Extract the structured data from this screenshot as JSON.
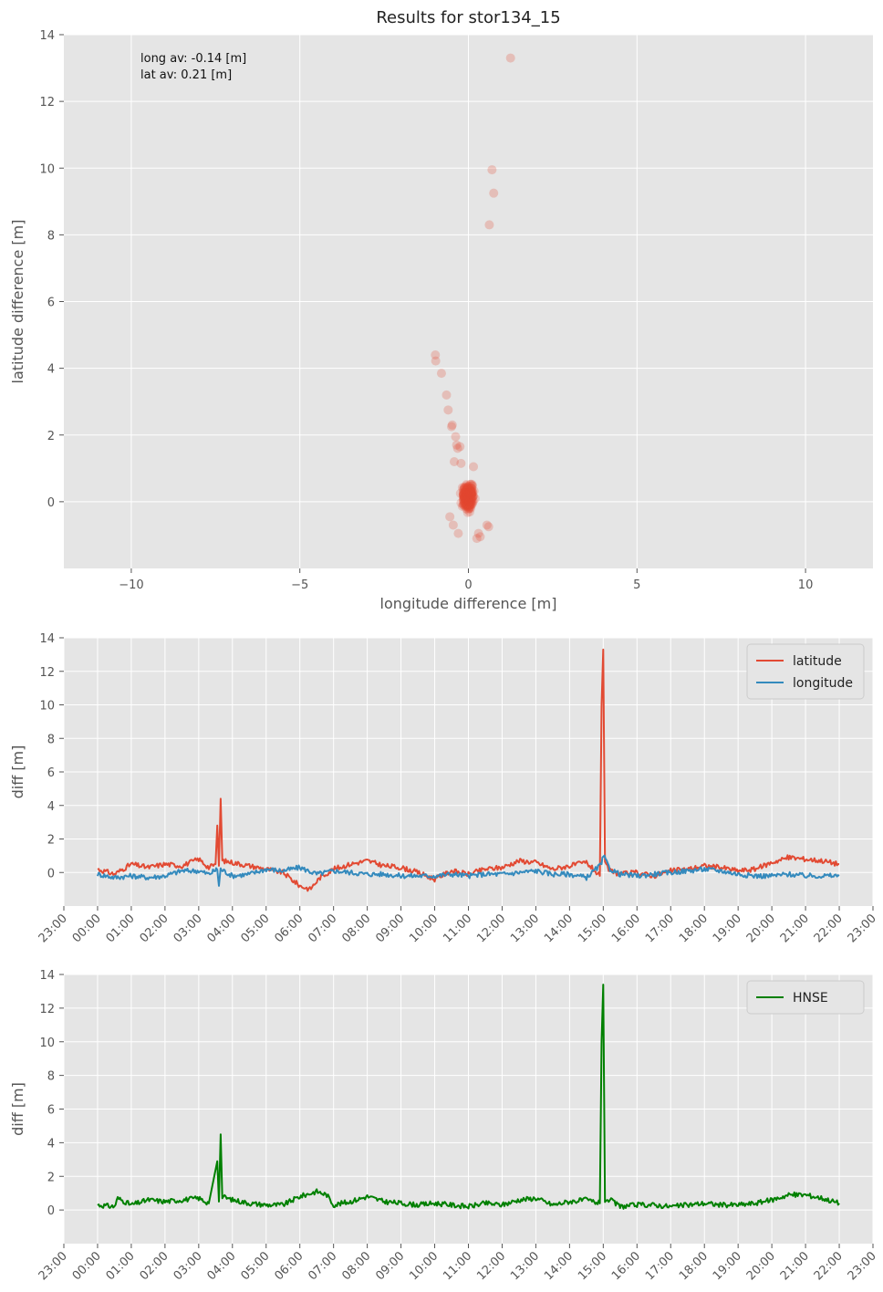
{
  "chart_data": [
    {
      "type": "scatter",
      "title": "Results for stor134_15",
      "xlabel": "longitude difference [m]",
      "ylabel": "latitude difference [m]",
      "xlim": [
        -12,
        12
      ],
      "ylim": [
        -2,
        14
      ],
      "xticks": [
        "-10",
        "-5",
        "0",
        "5",
        "10"
      ],
      "xtick_values": [
        -10,
        -5,
        0,
        5,
        10
      ],
      "yticks": [
        "0",
        "2",
        "4",
        "6",
        "8",
        "10",
        "12",
        "14"
      ],
      "ytick_values": [
        0,
        2,
        4,
        6,
        8,
        10,
        12,
        14
      ],
      "annotation": [
        "long av: -0.14 [m]",
        "lat av: 0.21 [m]"
      ],
      "marker_color": "#E24A33",
      "grid": true,
      "points_outliers": [
        [
          1.25,
          13.3
        ],
        [
          0.7,
          9.95
        ],
        [
          0.75,
          9.25
        ],
        [
          0.62,
          8.3
        ],
        [
          -0.98,
          4.4
        ],
        [
          -0.97,
          4.22
        ],
        [
          -0.8,
          3.85
        ],
        [
          -0.65,
          3.2
        ],
        [
          -0.6,
          2.75
        ],
        [
          -0.48,
          2.3
        ],
        [
          -0.5,
          2.25
        ],
        [
          -0.38,
          1.95
        ],
        [
          -0.35,
          1.7
        ],
        [
          -0.32,
          1.6
        ],
        [
          -0.25,
          1.65
        ],
        [
          -0.42,
          1.2
        ],
        [
          -0.22,
          1.15
        ],
        [
          0.15,
          1.05
        ],
        [
          0.55,
          -0.7
        ],
        [
          0.6,
          -0.75
        ],
        [
          0.3,
          -0.95
        ],
        [
          0.35,
          -1.05
        ],
        [
          0.25,
          -1.1
        ],
        [
          -0.3,
          -0.95
        ],
        [
          -0.55,
          -0.45
        ],
        [
          -0.45,
          -0.7
        ]
      ]
    },
    {
      "type": "line",
      "ylabel": "diff [m]",
      "ylim": [
        -2,
        14
      ],
      "yticks": [
        "0",
        "2",
        "4",
        "6",
        "8",
        "10",
        "12",
        "14"
      ],
      "ytick_values": [
        0,
        2,
        4,
        6,
        8,
        10,
        12,
        14
      ],
      "xticks": [
        "23:00",
        "00:00",
        "01:00",
        "02:00",
        "03:00",
        "04:00",
        "05:00",
        "06:00",
        "07:00",
        "08:00",
        "09:00",
        "10:00",
        "11:00",
        "12:00",
        "13:00",
        "14:00",
        "15:00",
        "16:00",
        "17:00",
        "18:00",
        "19:00",
        "20:00",
        "21:00",
        "22:00",
        "23:00"
      ],
      "xlim_hours": [
        -1,
        23
      ],
      "legend": "top-right",
      "grid": true,
      "series": [
        {
          "name": "latitude",
          "color": "#E24A33",
          "x": [
            0.0,
            0.5,
            1.0,
            1.5,
            2.0,
            2.5,
            3.0,
            3.3,
            3.5,
            3.55,
            3.6,
            3.65,
            3.7,
            4.0,
            4.5,
            5.0,
            5.5,
            6.0,
            6.3,
            6.6,
            7.0,
            7.5,
            8.0,
            8.5,
            9.0,
            9.5,
            10.0,
            10.5,
            11.0,
            11.5,
            12.0,
            12.5,
            13.0,
            13.5,
            14.0,
            14.5,
            14.9,
            14.95,
            15.0,
            15.05,
            15.2,
            15.5,
            16.0,
            16.5,
            17.0,
            17.5,
            18.0,
            18.5,
            19.0,
            19.5,
            20.0,
            20.5,
            21.0,
            21.5,
            22.0
          ],
          "y": [
            0.2,
            -0.1,
            0.5,
            0.3,
            0.5,
            0.4,
            0.8,
            0.3,
            0.5,
            2.8,
            0.4,
            4.4,
            0.7,
            0.6,
            0.4,
            0.2,
            0.0,
            -0.8,
            -1.0,
            -0.3,
            0.2,
            0.5,
            0.7,
            0.4,
            0.3,
            0.0,
            -0.4,
            0.1,
            -0.1,
            0.2,
            0.3,
            0.7,
            0.6,
            0.2,
            0.4,
            0.6,
            -0.2,
            10.0,
            13.3,
            0.5,
            0.1,
            -0.1,
            0.0,
            -0.2,
            0.1,
            0.2,
            0.4,
            0.3,
            0.1,
            0.2,
            0.6,
            0.9,
            0.8,
            0.7,
            0.5
          ]
        },
        {
          "name": "longitude",
          "color": "#348ABD",
          "x": [
            0.0,
            0.5,
            1.0,
            1.5,
            2.0,
            2.5,
            3.0,
            3.3,
            3.55,
            3.6,
            3.65,
            4.0,
            4.5,
            5.0,
            5.5,
            6.0,
            6.5,
            7.0,
            7.5,
            8.0,
            8.5,
            9.0,
            9.5,
            10.0,
            10.5,
            11.0,
            11.5,
            12.0,
            12.5,
            13.0,
            13.5,
            14.0,
            14.5,
            14.95,
            15.0,
            15.2,
            15.5,
            16.0,
            16.5,
            17.0,
            17.5,
            18.0,
            18.5,
            19.0,
            19.5,
            20.0,
            20.5,
            21.0,
            21.5,
            22.0
          ],
          "y": [
            -0.1,
            -0.3,
            -0.2,
            -0.3,
            -0.2,
            0.1,
            0.1,
            -0.1,
            0.2,
            -0.8,
            0.2,
            -0.2,
            -0.1,
            0.2,
            0.1,
            0.3,
            -0.1,
            0.1,
            0.0,
            -0.1,
            -0.1,
            -0.2,
            -0.2,
            -0.2,
            -0.1,
            -0.2,
            -0.1,
            -0.1,
            0.0,
            0.1,
            -0.1,
            -0.1,
            -0.3,
            0.5,
            1.0,
            0.2,
            -0.1,
            -0.2,
            -0.1,
            0.0,
            0.1,
            0.2,
            0.1,
            -0.1,
            -0.2,
            -0.2,
            -0.1,
            -0.2,
            -0.2,
            -0.2
          ]
        }
      ]
    },
    {
      "type": "line",
      "ylabel": "diff [m]",
      "ylim": [
        -2,
        14
      ],
      "yticks": [
        "0",
        "2",
        "4",
        "6",
        "8",
        "10",
        "12",
        "14"
      ],
      "ytick_values": [
        0,
        2,
        4,
        6,
        8,
        10,
        12,
        14
      ],
      "xticks": [
        "23:00",
        "00:00",
        "01:00",
        "02:00",
        "03:00",
        "04:00",
        "05:00",
        "06:00",
        "07:00",
        "08:00",
        "09:00",
        "10:00",
        "11:00",
        "12:00",
        "13:00",
        "14:00",
        "15:00",
        "16:00",
        "17:00",
        "18:00",
        "19:00",
        "20:00",
        "21:00",
        "22:00",
        "23:00"
      ],
      "xlim_hours": [
        -1,
        23
      ],
      "legend": "top-right",
      "grid": true,
      "series": [
        {
          "name": "HNSE",
          "color": "#008000",
          "x": [
            0.0,
            0.5,
            0.6,
            1.0,
            1.5,
            2.0,
            2.5,
            3.0,
            3.3,
            3.55,
            3.6,
            3.65,
            3.7,
            4.0,
            4.5,
            5.0,
            5.5,
            6.0,
            6.5,
            6.8,
            7.0,
            7.5,
            8.0,
            8.5,
            9.0,
            9.5,
            10.0,
            10.5,
            11.0,
            11.5,
            12.0,
            12.5,
            13.0,
            13.5,
            14.0,
            14.5,
            14.9,
            14.95,
            15.0,
            15.05,
            15.2,
            15.5,
            16.0,
            16.5,
            17.0,
            17.5,
            18.0,
            18.5,
            19.0,
            19.5,
            20.0,
            20.5,
            21.0,
            21.5,
            22.0
          ],
          "y": [
            0.3,
            0.2,
            0.7,
            0.3,
            0.6,
            0.5,
            0.6,
            0.7,
            0.4,
            2.9,
            0.5,
            4.5,
            0.8,
            0.6,
            0.4,
            0.3,
            0.3,
            0.8,
            1.1,
            0.9,
            0.3,
            0.5,
            0.8,
            0.5,
            0.4,
            0.3,
            0.4,
            0.3,
            0.2,
            0.4,
            0.3,
            0.6,
            0.7,
            0.3,
            0.5,
            0.6,
            0.4,
            10.0,
            13.4,
            0.6,
            0.6,
            0.2,
            0.3,
            0.3,
            0.2,
            0.3,
            0.4,
            0.3,
            0.3,
            0.4,
            0.6,
            0.9,
            0.9,
            0.7,
            0.4
          ]
        }
      ]
    }
  ]
}
